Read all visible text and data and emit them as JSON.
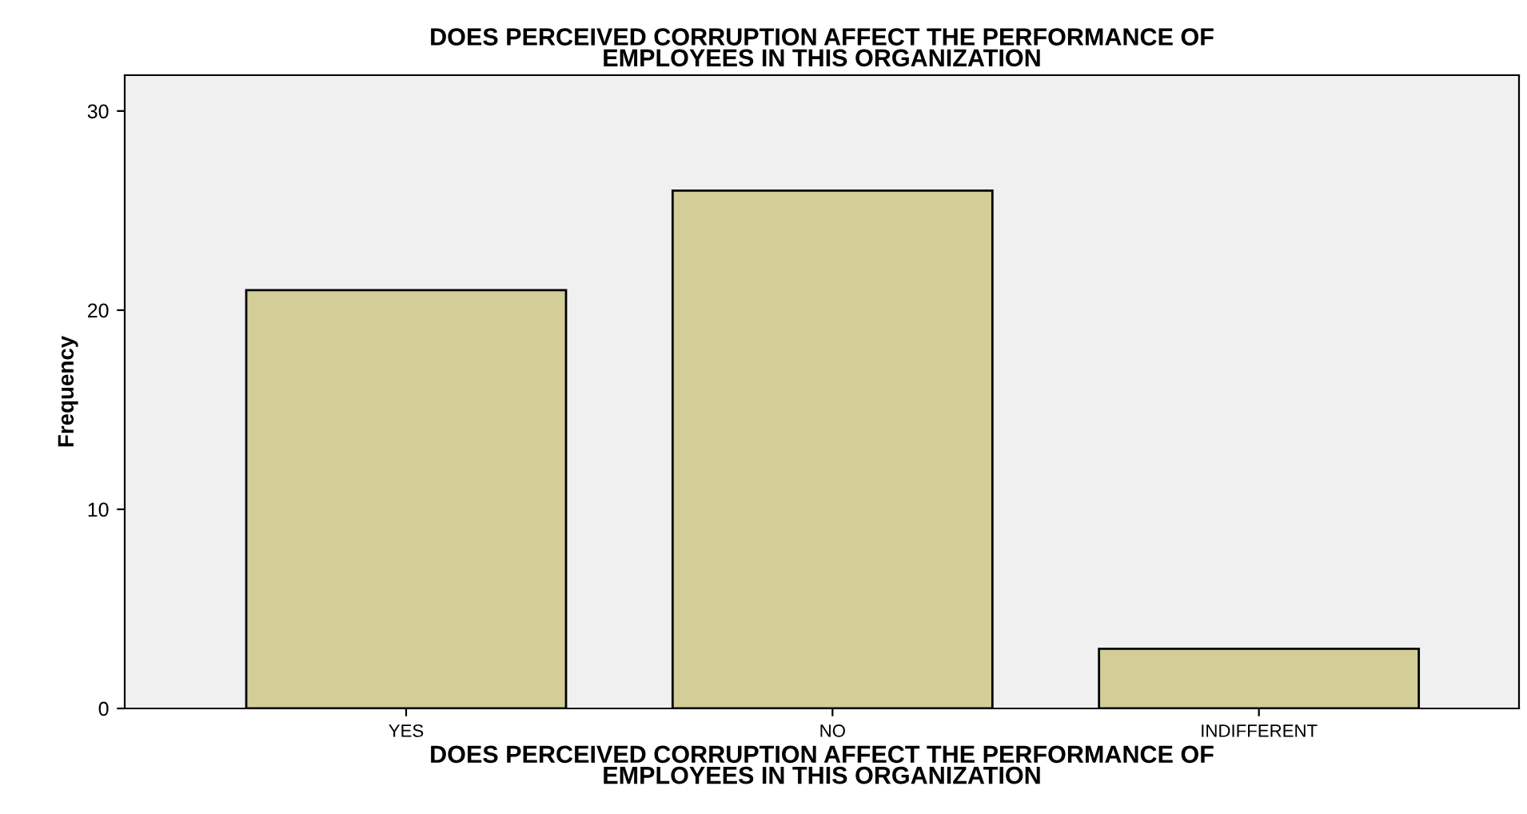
{
  "chart_data": {
    "type": "bar",
    "title": "DOES PERCEIVED CORRUPTION AFFECT THE PERFORMANCE OF\nEMPLOYEES IN THIS ORGANIZATION",
    "xlabel": "DOES PERCEIVED CORRUPTION AFFECT THE PERFORMANCE OF\nEMPLOYEES IN THIS ORGANIZATION",
    "ylabel": "Frequency",
    "categories": [
      "YES",
      "NO",
      "INDIFFERENT"
    ],
    "values": [
      21,
      26,
      3
    ],
    "color": "#d3ce97",
    "ylim": [
      0,
      31.8
    ],
    "yticks": [
      0,
      10,
      20,
      30
    ],
    "grid": false
  }
}
